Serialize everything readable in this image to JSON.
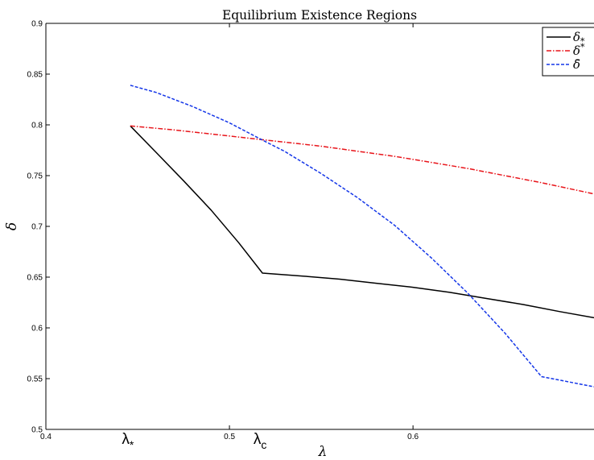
{
  "chart_data": {
    "type": "line",
    "title": "Equilibrium Existence Regions",
    "xlabel": "λ",
    "ylabel": "δ",
    "xlim": [
      0.4,
      0.6986
    ],
    "ylim": [
      0.5,
      0.9
    ],
    "x_ticks": [
      {
        "value": 0.4,
        "label": "0.4"
      },
      {
        "value": 0.5,
        "label": "0.5"
      },
      {
        "value": 0.6,
        "label": "0.6"
      }
    ],
    "y_ticks": [
      {
        "value": 0.5,
        "label": "0.5"
      },
      {
        "value": 0.55,
        "label": "0.55"
      },
      {
        "value": 0.6,
        "label": "0.6"
      },
      {
        "value": 0.65,
        "label": "0.65"
      },
      {
        "value": 0.7,
        "label": "0.7"
      },
      {
        "value": 0.75,
        "label": "0.75"
      },
      {
        "value": 0.8,
        "label": "0.8"
      },
      {
        "value": 0.85,
        "label": "0.85"
      },
      {
        "value": 0.9,
        "label": "0.9"
      }
    ],
    "annotations": [
      {
        "name": "lambda-star",
        "symbol": "λ",
        "sub": "*",
        "x": 0.446
      },
      {
        "name": "lambda-c",
        "symbol": "λ",
        "sub": "c",
        "x": 0.518
      }
    ],
    "grid": false,
    "legend": {
      "position": "top-right",
      "entries": [
        {
          "symbol": "δ",
          "sub": "*"
        },
        {
          "symbol": "δ",
          "sup": "*"
        },
        {
          "symbol": "δ̄"
        }
      ]
    },
    "series": [
      {
        "color": "#000000",
        "dash": "solid",
        "x": [
          0.446,
          0.46,
          0.475,
          0.49,
          0.505,
          0.518,
          0.54,
          0.56,
          0.58,
          0.6,
          0.62,
          0.64,
          0.66,
          0.68,
          0.6986
        ],
        "y": [
          0.799,
          0.773,
          0.745,
          0.716,
          0.684,
          0.654,
          0.651,
          0.648,
          0.644,
          0.64,
          0.635,
          0.629,
          0.623,
          0.616,
          0.61
        ]
      },
      {
        "color": "#e8141a",
        "dash": "dashdot",
        "x": [
          0.446,
          0.47,
          0.49,
          0.51,
          0.53,
          0.55,
          0.57,
          0.59,
          0.61,
          0.63,
          0.65,
          0.67,
          0.6986
        ],
        "y": [
          0.799,
          0.795,
          0.791,
          0.787,
          0.783,
          0.779,
          0.774,
          0.769,
          0.763,
          0.757,
          0.75,
          0.743,
          0.732
        ]
      },
      {
        "color": "#1436e8",
        "dash": "dashed",
        "x": [
          0.446,
          0.46,
          0.48,
          0.5,
          0.518,
          0.53,
          0.55,
          0.57,
          0.59,
          0.61,
          0.63,
          0.65,
          0.67,
          0.6986
        ],
        "y": [
          0.839,
          0.832,
          0.818,
          0.802,
          0.785,
          0.774,
          0.752,
          0.728,
          0.701,
          0.669,
          0.634,
          0.595,
          0.552,
          0.542
        ]
      }
    ]
  }
}
